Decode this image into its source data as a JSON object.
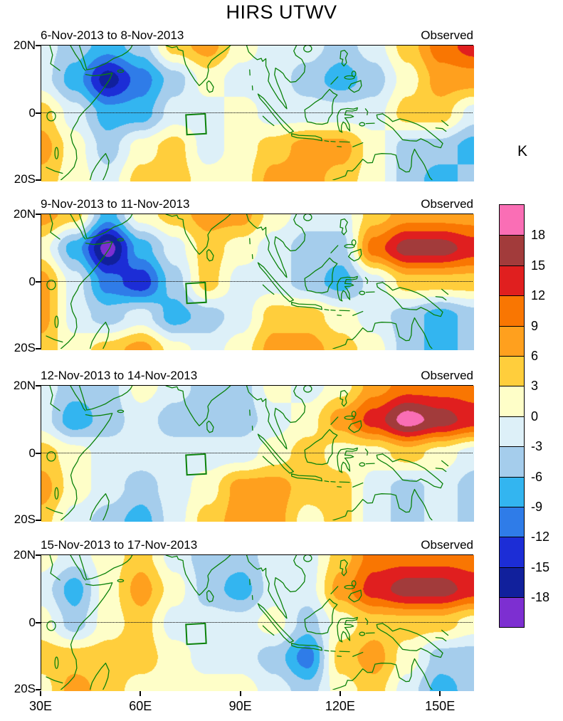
{
  "title": "HIRS UTWV",
  "axes": {
    "x_ticks": [
      "30E",
      "60E",
      "90E",
      "120E",
      "150E"
    ],
    "y_ticks": [
      "20N",
      "0",
      "20S"
    ]
  },
  "colorbar": {
    "labels": [
      "18",
      "15",
      "12",
      "9",
      "6",
      "3",
      "0",
      "-3",
      "-6",
      "-9",
      "-12",
      "-15",
      "-18"
    ]
  },
  "chart_data": {
    "type": "heatmap",
    "title": "HIRS UTWV",
    "unit": "K",
    "lon": [
      30,
      40,
      50,
      60,
      70,
      80,
      90,
      100,
      110,
      120,
      130,
      140,
      150,
      160
    ],
    "lat": [
      20,
      10,
      0,
      -10,
      -20
    ],
    "contour_interval": 3,
    "levels": [
      -18,
      -15,
      -12,
      -9,
      -6,
      -3,
      0,
      3,
      6,
      9,
      12,
      15,
      18
    ],
    "palette_low_to_high": [
      "#7D2FD1",
      "#11209C",
      "#1C2DD6",
      "#2F7CE8",
      "#33B5F0",
      "#A5CDEC",
      "#DDF0F8",
      "#FEFEC8",
      "#FFCE3C",
      "#FFA01E",
      "#F97602",
      "#E01F1F",
      "#A23B3B",
      "#FA6EB5"
    ],
    "panels": [
      {
        "date_range": "6-Nov-2013 to 8-Nov-2013",
        "source": "Observed",
        "values": [
          [
            -1.5,
            -4.5,
            -7.5,
            -4.5,
            4.5,
            7.5,
            1.5,
            -1.5,
            -1.5,
            -4.5,
            -1.5,
            4.5,
            10.5,
            13.5
          ],
          [
            -1.5,
            -7.5,
            -16.5,
            -10.5,
            -4.5,
            1.5,
            -1.5,
            -1.5,
            -4.5,
            -7.5,
            -4.5,
            1.5,
            7.5,
            7.5
          ],
          [
            4.5,
            -1.5,
            -7.5,
            -7.5,
            -1.5,
            -1.5,
            1.5,
            -1.5,
            -1.5,
            -1.5,
            -1.5,
            4.5,
            4.5,
            -1.5
          ],
          [
            7.5,
            1.5,
            -4.5,
            1.5,
            4.5,
            -1.5,
            1.5,
            4.5,
            7.5,
            7.5,
            1.5,
            -4.5,
            -4.5,
            -7.5
          ],
          [
            4.5,
            1.5,
            -1.5,
            4.5,
            4.5,
            1.5,
            1.5,
            7.5,
            7.5,
            4.5,
            1.5,
            -4.5,
            -7.5,
            -4.5
          ]
        ]
      },
      {
        "date_range": "9-Nov-2013 to 11-Nov-2013",
        "source": "Observed",
        "values": [
          [
            7.5,
            4.5,
            -7.5,
            1.5,
            4.5,
            7.5,
            7.5,
            1.5,
            -1.5,
            -1.5,
            4.5,
            7.5,
            7.5,
            7.5
          ],
          [
            1.5,
            -7.5,
            -19.5,
            -7.5,
            -1.5,
            4.5,
            1.5,
            -1.5,
            -4.5,
            -4.5,
            10.5,
            16.5,
            16.5,
            13.5
          ],
          [
            7.5,
            -1.5,
            -10.5,
            -14,
            -4.5,
            4.5,
            -1.5,
            -1.5,
            -4.5,
            -7.5,
            -1.5,
            4.5,
            4.5,
            4.5
          ],
          [
            7.5,
            -1.5,
            -4.5,
            -1.5,
            -7.5,
            -4.5,
            -1.5,
            4.5,
            4.5,
            1.5,
            -1.5,
            -4.5,
            -7.5,
            -4.5
          ],
          [
            4.5,
            1.5,
            4.5,
            7.5,
            1.5,
            -1.5,
            1.5,
            7.5,
            7.5,
            4.5,
            1.5,
            -4.5,
            -7.5,
            -4.5
          ]
        ]
      },
      {
        "date_range": "12-Nov-2013 to 14-Nov-2013",
        "source": "Observed",
        "values": [
          [
            -1.5,
            -4.5,
            -4.5,
            1.5,
            -1.5,
            -4.5,
            -4.5,
            1.5,
            -1.5,
            1.5,
            7.5,
            10.5,
            10.5,
            10.5
          ],
          [
            -1.5,
            -8,
            -4.5,
            -1.5,
            -4.5,
            -4.5,
            -4.5,
            -1.5,
            1.5,
            7.5,
            13.5,
            19.5,
            16.5,
            13.5
          ],
          [
            4.5,
            1.5,
            -1.5,
            -1.5,
            -1.5,
            -1.5,
            -1.5,
            1.5,
            4.5,
            1.5,
            1.5,
            4.5,
            1.5,
            -1.5
          ],
          [
            7.5,
            1.5,
            -1.5,
            -4.5,
            -1.5,
            1.5,
            7.5,
            7.5,
            4.5,
            4.5,
            -1.5,
            -4.5,
            -1.5,
            -4.5
          ],
          [
            4.5,
            -1.5,
            -4.5,
            -7.5,
            -1.5,
            4.5,
            7.5,
            7.5,
            1.5,
            4.5,
            -1.5,
            -4.5,
            -1.5,
            -4.5
          ]
        ]
      },
      {
        "date_range": "15-Nov-2013 to 17-Nov-2013",
        "source": "Observed",
        "values": [
          [
            1.5,
            -1.5,
            1.5,
            4.5,
            -1.5,
            -4.5,
            -4.5,
            -1.5,
            -1.5,
            4.5,
            10.5,
            10.5,
            10.5,
            10.5
          ],
          [
            -1.5,
            -7.5,
            1.5,
            7.5,
            1.5,
            -4.5,
            -7.5,
            -1.5,
            -1.5,
            7.5,
            13.5,
            16.5,
            16.5,
            13.5
          ],
          [
            1.5,
            -4.5,
            1.5,
            4.5,
            -1.5,
            -1.5,
            -1.5,
            1.5,
            -4.5,
            1.5,
            4.5,
            4.5,
            4.5,
            1.5
          ],
          [
            4.5,
            4.5,
            4.5,
            4.5,
            1.5,
            -1.5,
            -1.5,
            -4.5,
            -10.5,
            4.5,
            7.5,
            1.5,
            -4.5,
            -4.5
          ],
          [
            1.5,
            7.5,
            4.5,
            1.5,
            1.5,
            1.5,
            1.5,
            -1.5,
            -4.5,
            1.5,
            4.5,
            -1.5,
            -7.5,
            -4.5
          ]
        ]
      }
    ]
  }
}
